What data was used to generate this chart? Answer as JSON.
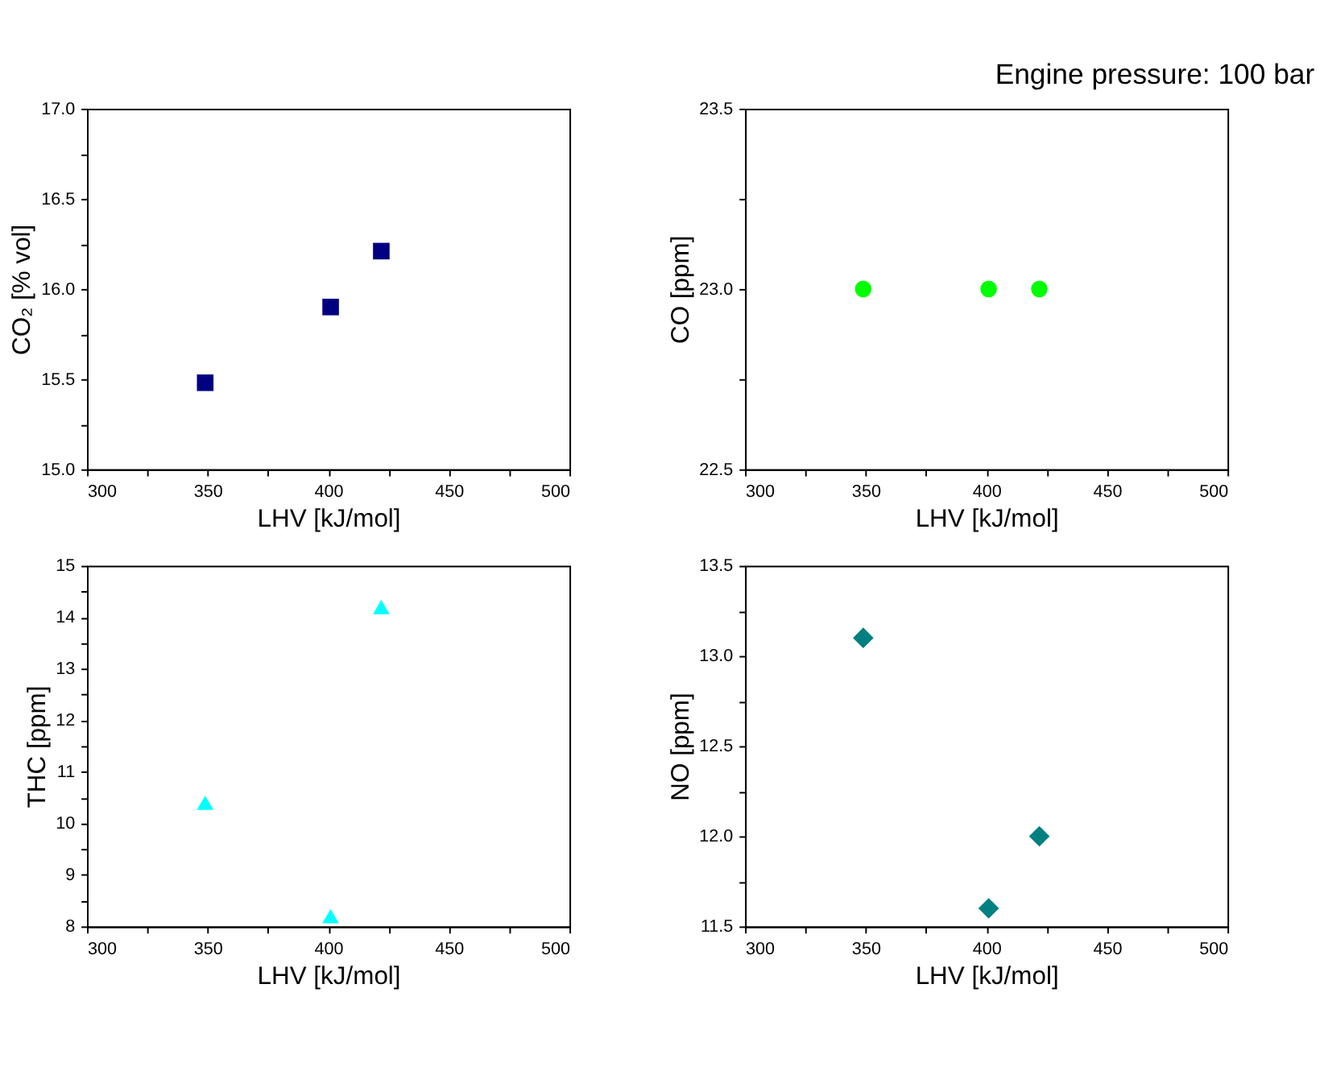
{
  "chart_data": [
    {
      "type": "scatter",
      "xlabel": "LHV [kJ/mol]",
      "ylabel": "CO₂ [% vol]",
      "x": [
        349,
        401,
        422
      ],
      "series": [
        {
          "color": "#000080",
          "values": [
            15.48,
            15.9,
            16.21
          ]
        }
      ],
      "marker": "square",
      "grid": false,
      "xlim": [
        300,
        500
      ],
      "xticks": [
        300,
        {
          "value": 325,
          "label": null
        },
        350,
        {
          "value": 375,
          "label": null
        },
        400,
        {
          "value": 425,
          "label": null
        },
        450,
        {
          "value": 475,
          "label": null
        },
        500
      ],
      "ylim": [
        15,
        17
      ],
      "yticks": [
        {
          "value": 15,
          "label": "15.0"
        },
        {
          "value": 15.25,
          "label": null
        },
        {
          "value": 15.5,
          "label": "15.5"
        },
        {
          "value": 15.75,
          "label": null
        },
        {
          "value": 16,
          "label": "16.0"
        },
        {
          "value": 16.25,
          "label": null
        },
        {
          "value": 16.5,
          "label": "16.5"
        },
        {
          "value": 16.75,
          "label": null
        },
        {
          "value": 17,
          "label": "17.0"
        }
      ]
    },
    {
      "type": "scatter",
      "xlabel": "LHV [kJ/mol]",
      "ylabel": "CO [ppm]",
      "x": [
        349,
        401,
        422
      ],
      "series": [
        {
          "color": "#00ff00",
          "values": [
            23.0,
            23.0,
            23.0
          ]
        }
      ],
      "marker": "circle",
      "grid": false,
      "annotations": [
        "Engine pressure: 100 bar"
      ],
      "xlim": [
        300,
        500
      ],
      "xticks": [
        300,
        {
          "value": 325,
          "label": null
        },
        350,
        {
          "value": 375,
          "label": null
        },
        400,
        {
          "value": 425,
          "label": null
        },
        450,
        {
          "value": 475,
          "label": null
        },
        500
      ],
      "ylim": [
        22.5,
        23.5
      ],
      "yticks": [
        {
          "value": 22.5,
          "label": "22.5"
        },
        {
          "value": 22.75,
          "label": null
        },
        {
          "value": 23,
          "label": "23.0"
        },
        {
          "value": 23.25,
          "label": null
        },
        {
          "value": 23.5,
          "label": "23.5"
        }
      ]
    },
    {
      "type": "scatter",
      "xlabel": "LHV [kJ/mol]",
      "ylabel": "THC [ppm]",
      "x": [
        349,
        401,
        422
      ],
      "series": [
        {
          "color": "#00ffff",
          "values": [
            10.4,
            8.2,
            14.2
          ]
        }
      ],
      "marker": "triangle",
      "grid": false,
      "xlim": [
        300,
        500
      ],
      "xticks": [
        300,
        {
          "value": 325,
          "label": null
        },
        350,
        {
          "value": 375,
          "label": null
        },
        400,
        {
          "value": 425,
          "label": null
        },
        450,
        {
          "value": 475,
          "label": null
        },
        500
      ],
      "ylim": [
        8,
        15
      ],
      "yticks": [
        8,
        {
          "value": 8.5,
          "label": null
        },
        9,
        {
          "value": 9.5,
          "label": null
        },
        10,
        {
          "value": 10.5,
          "label": null
        },
        11,
        {
          "value": 11.5,
          "label": null
        },
        12,
        {
          "value": 12.5,
          "label": null
        },
        13,
        {
          "value": 13.5,
          "label": null
        },
        14,
        {
          "value": 14.5,
          "label": null
        },
        15
      ]
    },
    {
      "type": "scatter",
      "xlabel": "LHV [kJ/mol]",
      "ylabel": "NO [ppm]",
      "x": [
        349,
        401,
        422
      ],
      "series": [
        {
          "color": "#008080",
          "values": [
            13.1,
            11.6,
            12.0
          ]
        }
      ],
      "marker": "diamond",
      "grid": false,
      "xlim": [
        300,
        500
      ],
      "xticks": [
        300,
        {
          "value": 325,
          "label": null
        },
        350,
        {
          "value": 375,
          "label": null
        },
        400,
        {
          "value": 425,
          "label": null
        },
        450,
        {
          "value": 475,
          "label": null
        },
        500
      ],
      "ylim": [
        11.5,
        13.5
      ],
      "yticks": [
        {
          "value": 11.5,
          "label": "11.5"
        },
        {
          "value": 11.75,
          "label": null
        },
        {
          "value": 12,
          "label": "12.0"
        },
        {
          "value": 12.25,
          "label": null
        },
        {
          "value": 12.5,
          "label": "12.5"
        },
        {
          "value": 12.75,
          "label": null
        },
        {
          "value": 13,
          "label": "13.0"
        },
        {
          "value": 13.25,
          "label": null
        },
        {
          "value": 13.5,
          "label": "13.5"
        }
      ]
    }
  ]
}
